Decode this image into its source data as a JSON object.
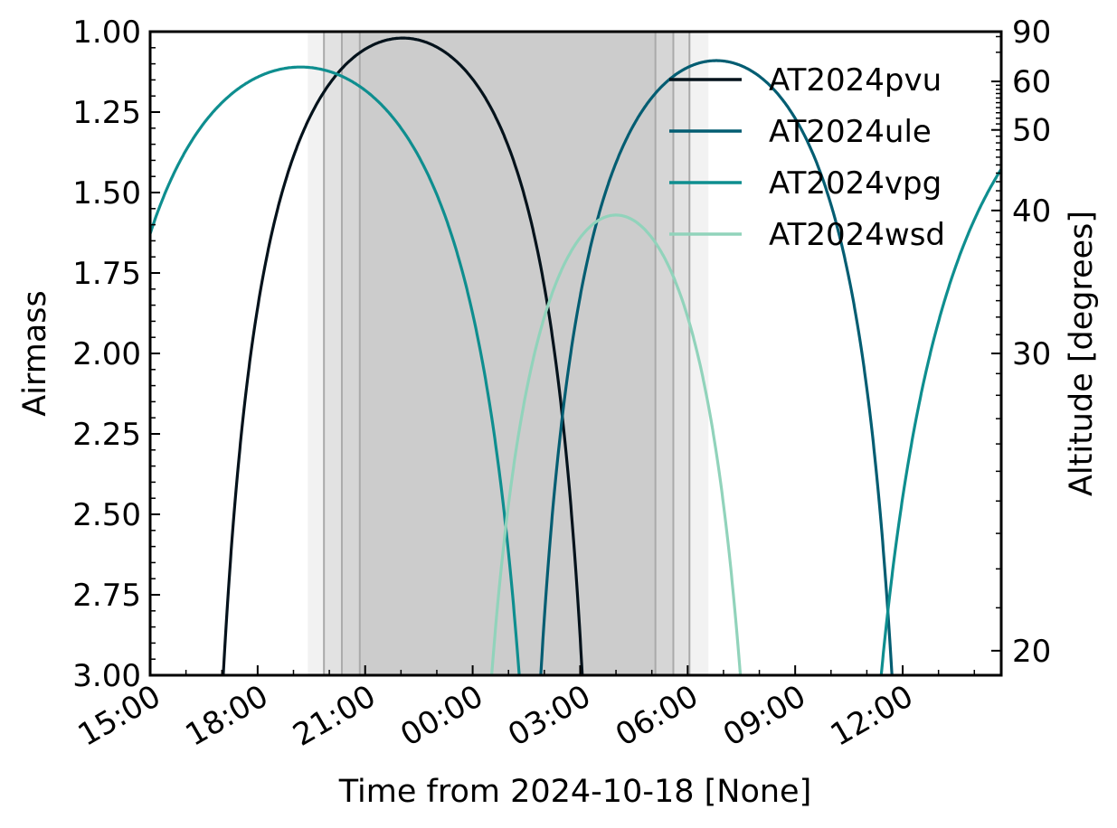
{
  "chart_data": {
    "type": "line",
    "xlabel": "Time from 2024-10-18 [None]",
    "ylabel": "Airmass",
    "y2label": "Altitude [degrees]",
    "x_unit": "hours relative to 2024-10-18 00:00",
    "xlim": [
      -9,
      14.75
    ],
    "ylim": [
      3.0,
      1.0
    ],
    "y_inverted": true,
    "x_tick_labels": [
      "15:00",
      "18:00",
      "21:00",
      "00:00",
      "03:00",
      "06:00",
      "09:00",
      "12:00"
    ],
    "x_tick_values": [
      -9,
      -6,
      -3,
      0,
      3,
      6,
      9,
      12
    ],
    "y_ticks": [
      1.0,
      1.25,
      1.5,
      1.75,
      2.0,
      2.25,
      2.5,
      2.75,
      3.0
    ],
    "y_tick_labels": [
      "1.00",
      "1.25",
      "1.50",
      "1.75",
      "2.00",
      "2.25",
      "2.50",
      "2.75",
      "3.00"
    ],
    "y2_ticks": [
      90,
      60,
      50,
      40,
      30,
      20
    ],
    "legend_position": "top-right",
    "twilight_bands": [
      {
        "start": -4.6,
        "end": 6.58,
        "level": "civil"
      },
      {
        "start": -4.15,
        "end": 6.05,
        "level": "nautical"
      },
      {
        "start": -3.65,
        "end": 5.6,
        "level": "astronomical"
      },
      {
        "start": -3.15,
        "end": 5.1,
        "level": "night"
      }
    ],
    "series": [
      {
        "name": "AT2024pvu",
        "color": "#04121b",
        "peak_x": -1.95,
        "peak_airmass": 1.02,
        "x": [
          -6.96,
          -6.0,
          -5.0,
          -4.0,
          -3.0,
          -2.0,
          -1.0,
          0.0,
          1.0,
          2.0,
          3.0,
          4.0,
          4.95
        ],
        "y": [
          3.0,
          2.09,
          1.56,
          1.26,
          1.1,
          1.02,
          1.04,
          1.13,
          1.32,
          1.67,
          2.3,
          3.2,
          5.0
        ]
      },
      {
        "name": "AT2024ule",
        "color": "#035d72",
        "peak_x": 6.8,
        "peak_airmass": 1.09,
        "x": [
          1.9,
          2.5,
          3.0,
          4.0,
          5.0,
          6.0,
          6.8,
          8.0,
          9.0,
          10.0,
          11.0,
          11.7
        ],
        "y": [
          3.0,
          2.36,
          1.98,
          1.47,
          1.21,
          1.11,
          1.09,
          1.14,
          1.26,
          1.5,
          2.02,
          3.0
        ]
      },
      {
        "name": "AT2024vpg",
        "color": "#0e8e8f",
        "peak_x": -4.8,
        "peak_airmass": 1.11,
        "x": [
          -9.0,
          -8.0,
          -7.0,
          -6.0,
          -5.0,
          -4.0,
          -3.0,
          -2.0,
          -1.0,
          0.0,
          1.0,
          1.3
        ],
        "y": [
          1.55,
          1.33,
          1.19,
          1.13,
          1.11,
          1.13,
          1.2,
          1.33,
          1.56,
          1.93,
          2.7,
          3.0
        ]
      },
      {
        "name": "AT2024vpg",
        "color": "#0e8e8f",
        "peak_x": 19.2,
        "peak_airmass": 1.11,
        "x": [
          11.4,
          12.0,
          13.0,
          14.0,
          14.75
        ],
        "y": [
          3.0,
          2.5,
          1.96,
          1.69,
          1.55
        ]
      },
      {
        "name": "AT2024wsd",
        "color": "#91d3bb",
        "peak_x": 4.0,
        "peak_airmass": 1.57,
        "x": [
          0.53,
          1.0,
          2.0,
          3.0,
          4.0,
          5.0,
          6.0,
          7.0,
          7.2
        ],
        "y": [
          3.0,
          2.46,
          1.93,
          1.67,
          1.57,
          1.62,
          1.83,
          2.44,
          3.0
        ]
      }
    ],
    "legend": [
      "AT2024pvu",
      "AT2024ule",
      "AT2024vpg",
      "AT2024wsd"
    ]
  }
}
